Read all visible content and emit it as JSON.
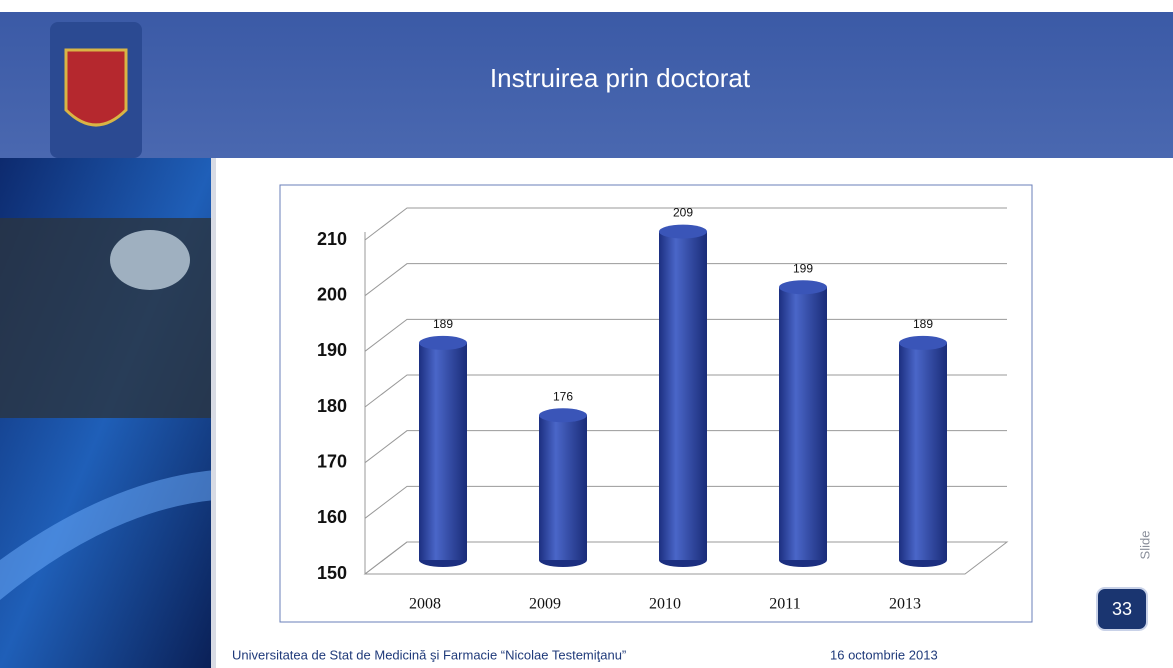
{
  "header": {
    "title": "Instruirea prin doctorat"
  },
  "chart_data": {
    "type": "bar",
    "categories": [
      "2008",
      "2009",
      "2010",
      "2011",
      "2013"
    ],
    "values": [
      189,
      176,
      209,
      199,
      189
    ],
    "color": "#2e4aa8",
    "ylim": [
      150,
      210
    ],
    "yticks": [
      150,
      160,
      170,
      180,
      190,
      200,
      210
    ],
    "grid": true
  },
  "footer": {
    "left": "Universitatea de Stat de Medicină şi Farmacie “Nicolae Testemiţanu”",
    "right": "16 octombrie 2013"
  },
  "slide": {
    "label": "Slide",
    "number": "33"
  }
}
